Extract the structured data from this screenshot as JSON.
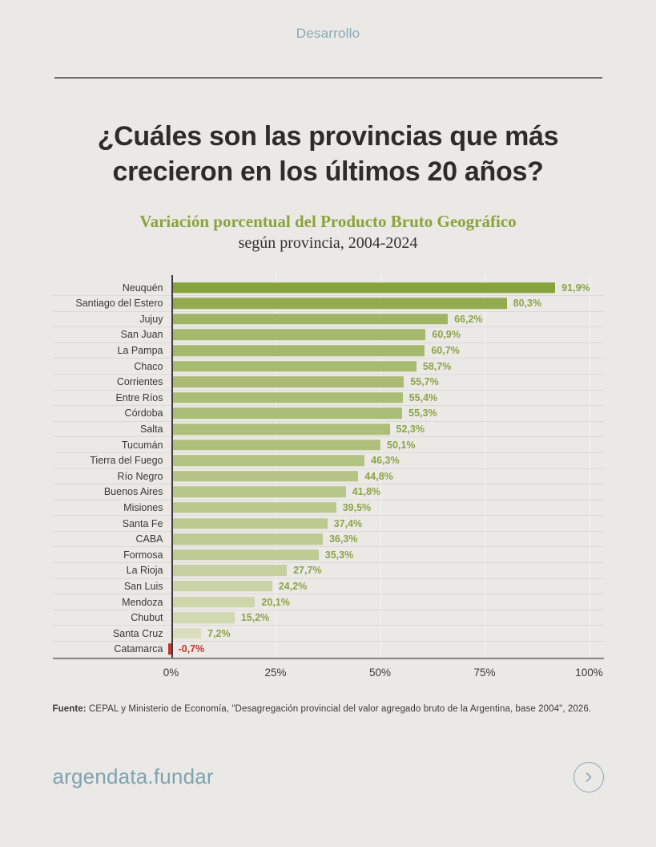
{
  "page": {
    "kicker": "Desarrollo",
    "title": "¿Cuáles son las provincias que más crecieron en los últimos 20 años?",
    "source_label": "Fuente:",
    "source_text": " CEPAL y Ministerio de Economía, \"Desagregación provincial del valor agregado bruto de la Argentina, base 2004\", 2026.",
    "brand": "argendata.fundar"
  },
  "colors": {
    "background": "#eae9e6",
    "kicker": "#8aa8b6",
    "title": "#2e2c29",
    "chart_title_green": "#8ba33c",
    "bar_color_max": "#7f9d32",
    "bar_color_min": "#e0e4c7",
    "bar_negative": "#c1352e",
    "value_label": "#8ca445",
    "value_label_negative": "#c1352e",
    "zero_axis": "#3c3c3c",
    "gridline": "#f5f5f1",
    "row_separator": "#dbdad6",
    "brand": "#7fa2b2"
  },
  "chart_data": {
    "type": "bar",
    "orientation": "horizontal",
    "title": "Variación porcentual del Producto Bruto Geográfico",
    "subtitle": "según provincia, 2004-2024",
    "categories": [
      "Neuquén",
      "Santiago del Estero",
      "Jujuy",
      "San Juan",
      "La Pampa",
      "Chaco",
      "Corrientes",
      "Entre Ríos",
      "Córdoba",
      "Salta",
      "Tucumán",
      "Tierra del Fuego",
      "Río Negro",
      "Buenos Aires",
      "Misiones",
      "Santa Fe",
      "CABA",
      "Formosa",
      "La Rioja",
      "San Luis",
      "Mendoza",
      "Chubut",
      "Santa Cruz",
      "Catamarca"
    ],
    "values": [
      91.9,
      80.3,
      66.2,
      60.9,
      60.7,
      58.7,
      55.7,
      55.4,
      55.3,
      52.3,
      50.1,
      46.3,
      44.8,
      41.8,
      39.5,
      37.4,
      36.3,
      35.3,
      27.7,
      24.2,
      20.1,
      15.2,
      7.2,
      -0.7
    ],
    "value_labels": [
      "91,9%",
      "80,3%",
      "66,2%",
      "60,9%",
      "60,7%",
      "58,7%",
      "55,7%",
      "55,4%",
      "55,3%",
      "52,3%",
      "50,1%",
      "46,3%",
      "44,8%",
      "41,8%",
      "39,5%",
      "37,4%",
      "36,3%",
      "35,3%",
      "27,7%",
      "24,2%",
      "20,1%",
      "15,2%",
      "7,2%",
      "-0,7%"
    ],
    "xlim": [
      0,
      100
    ],
    "x_tick_values": [
      0,
      25,
      50,
      75,
      100
    ],
    "x_tick_labels": [
      "0%",
      "25%",
      "50%",
      "75%",
      "100%"
    ],
    "grid": true,
    "legend": false,
    "value_label_position": "outside-end"
  }
}
